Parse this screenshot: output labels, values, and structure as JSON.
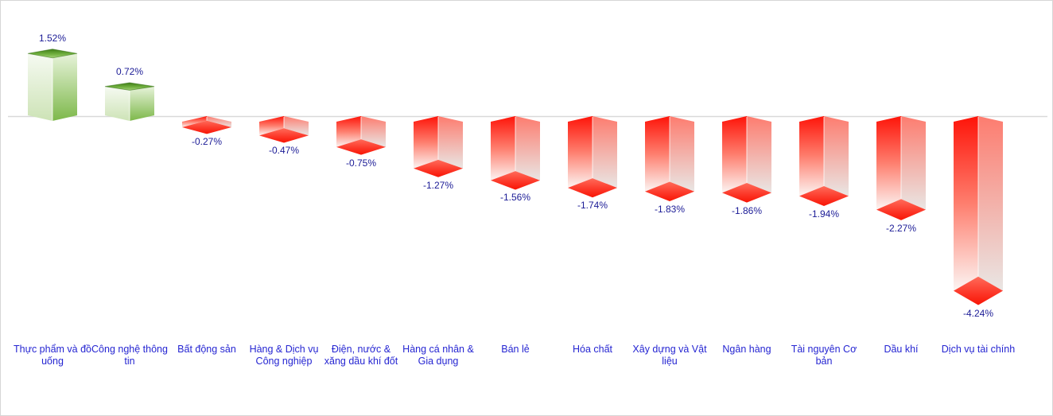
{
  "chart": {
    "background": "#ffffff",
    "border_color": "#d6d6d6",
    "baseline_color": "#d9d9d9",
    "value_label_color": "#1b1b96",
    "category_label_color": "#2525d2",
    "positive_color": "#6fae3d",
    "negative_color": "#fc2415"
  },
  "chart_data": {
    "type": "bar",
    "subtype": "3d-column",
    "orientation": "vertical",
    "unit": "%",
    "title": "",
    "xlabel": "",
    "ylabel": "",
    "axes_visible": false,
    "gridlines": false,
    "legend": false,
    "baseline": 0,
    "ylim": [
      -4.6,
      2.0
    ],
    "data_label_position": "outside-end",
    "categories": [
      "Thực phẩm và đồ uống",
      "Công nghệ thông tin",
      "Bất động sản",
      "Hàng & Dịch vụ Công nghiệp",
      "Điện, nước & xăng dầu khí đốt",
      "Hàng cá nhân & Gia dụng",
      "Bán lẻ",
      "Hóa chất",
      "Xây dựng và Vật liệu",
      "Ngân hàng",
      "Tài nguyên Cơ bản",
      "Dầu khí",
      "Dịch vụ tài chính"
    ],
    "values": [
      1.52,
      0.72,
      -0.27,
      -0.47,
      -0.75,
      -1.27,
      -1.56,
      -1.74,
      -1.83,
      -1.86,
      -1.94,
      -2.27,
      -4.24
    ],
    "value_labels": [
      "1.52%",
      "0.72%",
      "-0.27%",
      "-0.47%",
      "-0.75%",
      "-1.27%",
      "-1.56%",
      "-1.74%",
      "-1.83%",
      "-1.86%",
      "-1.94%",
      "-2.27%",
      "-4.24%"
    ]
  }
}
